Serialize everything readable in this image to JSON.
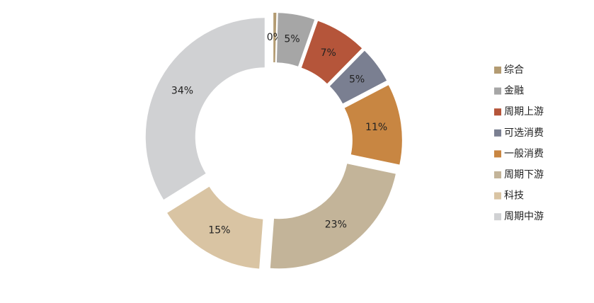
{
  "chart_data": {
    "type": "donut",
    "categories": [
      "综合",
      "金融",
      "周期上游",
      "可选消费",
      "一般消费",
      "周期下游",
      "科技",
      "周期中游"
    ],
    "values": [
      0.4,
      5,
      7,
      5,
      11,
      23,
      15,
      34
    ],
    "value_labels": [
      "0%",
      "5%",
      "7%",
      "5%",
      "11%",
      "23%",
      "15%",
      "34%"
    ],
    "colors": [
      "#b39b72",
      "#a6a6a6",
      "#b5553a",
      "#7a7f91",
      "#c88642",
      "#c3b499",
      "#d9c4a3",
      "#d0d1d3"
    ],
    "legend": "right"
  }
}
